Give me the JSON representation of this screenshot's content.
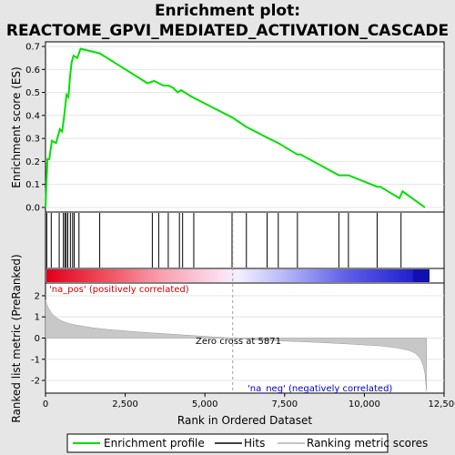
{
  "title_line1": "Enrichment plot:",
  "title_line2": "REACTOME_GPVI_MEDIATED_ACTIVATION_CASCADE",
  "colors": {
    "profile": "#00e000",
    "hits": "#000000",
    "metric_fill": "#c8c8c8",
    "zero_line": "#a0a0a0",
    "pos_text": "#d00000",
    "neg_text": "#0000c0"
  },
  "legend": {
    "profile": "Enrichment profile",
    "hits": "Hits",
    "metric": "Ranking metric scores"
  },
  "annotations": {
    "pos": "'na_pos' (positively correlated)",
    "neg": "'na_neg' (negatively correlated)",
    "zero": "Zero cross at 5871"
  },
  "chart_data": [
    {
      "type": "line",
      "name": "enrichment-profile",
      "ylabel": "Enrichment score (ES)",
      "ylim": [
        -0.02,
        0.72
      ],
      "yticks": [
        "0.0",
        "0.1",
        "0.2",
        "0.3",
        "0.4",
        "0.5",
        "0.6",
        "0.7"
      ],
      "xlim": [
        0,
        12500
      ],
      "x": [
        0,
        60,
        120,
        200,
        330,
        450,
        520,
        580,
        620,
        660,
        720,
        770,
        820,
        880,
        1000,
        1100,
        1700,
        3200,
        3400,
        3550,
        3700,
        3850,
        4000,
        4150,
        4250,
        4600,
        5871,
        6300,
        7000,
        7300,
        7900,
        8000,
        9200,
        9300,
        9500,
        10400,
        10500,
        11100,
        11200,
        11900
      ],
      "y": [
        0.0,
        0.21,
        0.21,
        0.29,
        0.28,
        0.34,
        0.33,
        0.39,
        0.44,
        0.49,
        0.48,
        0.57,
        0.63,
        0.66,
        0.65,
        0.69,
        0.67,
        0.54,
        0.55,
        0.54,
        0.53,
        0.53,
        0.52,
        0.5,
        0.51,
        0.48,
        0.39,
        0.35,
        0.3,
        0.28,
        0.23,
        0.23,
        0.14,
        0.14,
        0.14,
        0.09,
        0.09,
        0.04,
        0.07,
        0.0
      ]
    },
    {
      "type": "hits",
      "name": "hits",
      "x": [
        40,
        180,
        430,
        560,
        610,
        650,
        700,
        780,
        850,
        900,
        1050,
        1700,
        3350,
        3550,
        3850,
        4200,
        4300,
        4650,
        5850,
        6300,
        6950,
        7300,
        7900,
        9200,
        9500,
        10400,
        11150
      ]
    },
    {
      "type": "area",
      "name": "ranked-list-metric",
      "xlabel": "Rank in Ordered Dataset",
      "ylabel": "Ranked list metric (PreRanked)",
      "ylim": [
        -2.6,
        2.6
      ],
      "yticks": [
        "-2",
        "-1",
        "0",
        "1",
        "2"
      ],
      "xlim": [
        0,
        12500
      ],
      "xticks": [
        "0",
        "2,500",
        "5,000",
        "7,500",
        "10,000",
        "12,500"
      ],
      "zero_cross": 5871,
      "x": [
        0,
        40,
        100,
        200,
        350,
        500,
        700,
        1000,
        1500,
        2000,
        3000,
        4000,
        5000,
        5871,
        6500,
        7500,
        8500,
        9500,
        10500,
        11000,
        11400,
        11600,
        11750,
        11850,
        11900,
        11950
      ],
      "y": [
        1.8,
        1.6,
        1.4,
        1.15,
        0.95,
        0.82,
        0.7,
        0.6,
        0.48,
        0.4,
        0.28,
        0.18,
        0.08,
        0.0,
        -0.07,
        -0.14,
        -0.2,
        -0.28,
        -0.37,
        -0.46,
        -0.58,
        -0.72,
        -0.95,
        -1.3,
        -1.7,
        -2.5
      ]
    }
  ]
}
